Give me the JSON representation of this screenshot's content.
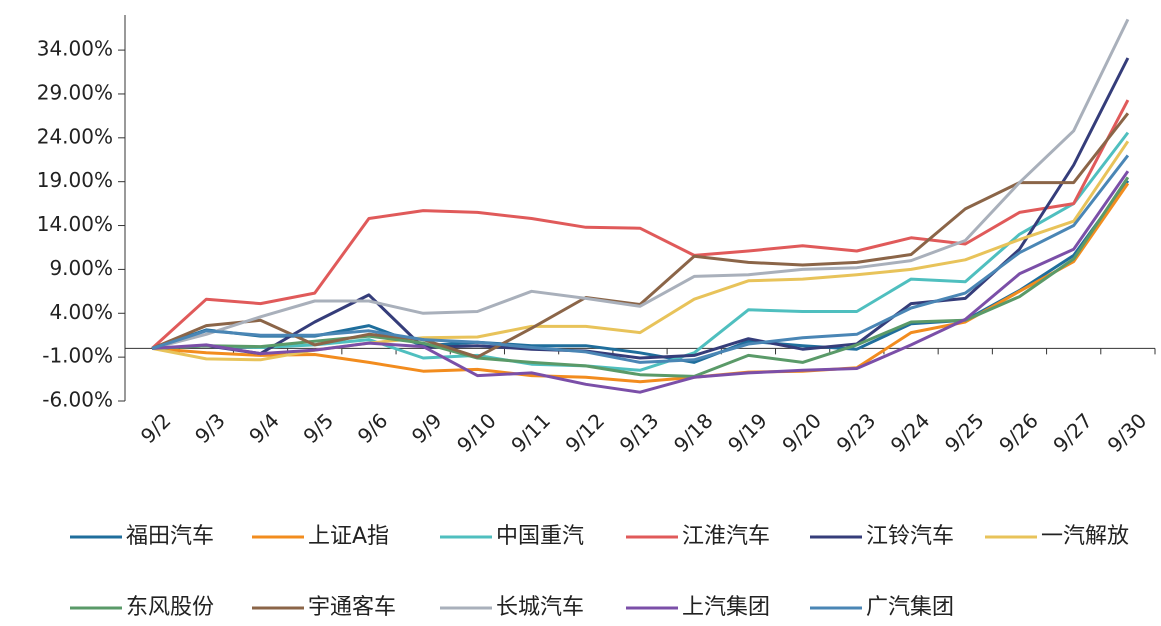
{
  "chart_data": {
    "type": "line",
    "categories": [
      "9/2",
      "9/3",
      "9/4",
      "9/5",
      "9/6",
      "9/9",
      "9/10",
      "9/11",
      "9/12",
      "9/13",
      "9/18",
      "9/19",
      "9/20",
      "9/23",
      "9/24",
      "9/25",
      "9/26",
      "9/27",
      "9/30"
    ],
    "ylim": [
      -6,
      38
    ],
    "yticks": [
      {
        "value": -6,
        "label": "-6.00%"
      },
      {
        "value": -1,
        "label": "-1.00%"
      },
      {
        "value": 4,
        "label": "4.00%"
      },
      {
        "value": 9,
        "label": "9.00%"
      },
      {
        "value": 14,
        "label": "14.00%"
      },
      {
        "value": 19,
        "label": "19.00%"
      },
      {
        "value": 24,
        "label": "24.00%"
      },
      {
        "value": 29,
        "label": "29.00%"
      },
      {
        "value": 34,
        "label": "34.00%"
      }
    ],
    "series": [
      {
        "name": "福田汽车",
        "color": "#1f6e9c",
        "values": [
          0,
          2.1,
          1.4,
          1.4,
          2.6,
          0.3,
          0.7,
          0.3,
          0.3,
          -0.5,
          -1.6,
          0.8,
          0.3,
          -0.1,
          2.8,
          3.2,
          6.6,
          10.6,
          19.1
        ]
      },
      {
        "name": "上证A指",
        "color": "#f28c1e",
        "values": [
          0,
          -0.5,
          -0.8,
          -0.7,
          -1.6,
          -2.6,
          -2.4,
          -3.1,
          -3.3,
          -3.8,
          -3.3,
          -2.7,
          -2.6,
          -2.2,
          1.8,
          3.0,
          6.5,
          9.9,
          18.8
        ]
      },
      {
        "name": "中国重汽",
        "color": "#4fbfbf",
        "values": [
          0,
          0.3,
          0.1,
          0.4,
          1.0,
          -1.1,
          -0.8,
          -1.8,
          -2.0,
          -2.5,
          -0.5,
          4.4,
          4.2,
          4.2,
          7.9,
          7.6,
          13.0,
          16.5,
          24.6
        ]
      },
      {
        "name": "江淮汽车",
        "color": "#e05a5a",
        "values": [
          0,
          5.6,
          5.1,
          6.3,
          14.8,
          15.7,
          15.5,
          14.8,
          13.8,
          13.7,
          10.6,
          11.1,
          11.7,
          11.1,
          12.6,
          11.9,
          15.5,
          16.5,
          28.3
        ]
      },
      {
        "name": "江铃汽车",
        "color": "#353d7a",
        "values": [
          0,
          0.3,
          -0.6,
          3.0,
          6.1,
          0.1,
          0.3,
          -0.1,
          -0.3,
          -1.1,
          -0.8,
          1.1,
          -0.1,
          0.5,
          5.1,
          5.7,
          11.3,
          20.9,
          33.1
        ]
      },
      {
        "name": "一汽解放",
        "color": "#e8c35a",
        "values": [
          0,
          -1.2,
          -1.3,
          -0.2,
          0.6,
          1.2,
          1.3,
          2.5,
          2.5,
          1.8,
          5.6,
          7.7,
          7.9,
          8.4,
          9.0,
          10.1,
          12.4,
          14.5,
          23.6
        ]
      },
      {
        "name": "东风股份",
        "color": "#5a9a68",
        "values": [
          0,
          0.3,
          0.2,
          0.8,
          1.4,
          0.6,
          -1.1,
          -1.6,
          -2.0,
          -3.0,
          -3.2,
          -0.8,
          -1.6,
          0.4,
          3.0,
          3.2,
          5.9,
          10.2,
          19.5
        ]
      },
      {
        "name": "宇通客车",
        "color": "#8b6548",
        "values": [
          0,
          2.6,
          3.2,
          0.4,
          1.6,
          1.0,
          -1.0,
          2.3,
          5.8,
          5.0,
          10.5,
          9.8,
          9.5,
          9.8,
          10.7,
          15.9,
          18.9,
          18.9,
          26.8
        ]
      },
      {
        "name": "长城汽车",
        "color": "#a9b0bb",
        "values": [
          0,
          1.6,
          3.6,
          5.4,
          5.4,
          4.0,
          4.2,
          6.5,
          5.7,
          4.8,
          8.2,
          8.4,
          9.0,
          9.2,
          10.0,
          12.3,
          18.9,
          24.8,
          37.5
        ]
      },
      {
        "name": "上汽集团",
        "color": "#7b4fa8",
        "values": [
          0,
          0.4,
          -0.6,
          -0.2,
          0.6,
          0.2,
          -3.1,
          -2.8,
          -4.1,
          -5.0,
          -3.3,
          -2.8,
          -2.5,
          -2.3,
          0.4,
          3.3,
          8.5,
          11.3,
          20.2
        ]
      },
      {
        "name": "广汽集团",
        "color": "#4a86b5",
        "values": [
          0,
          2.0,
          1.5,
          1.5,
          2.0,
          1.0,
          0.7,
          0.1,
          -0.4,
          -1.6,
          -1.3,
          0.5,
          1.2,
          1.6,
          4.6,
          6.3,
          10.9,
          14.0,
          22.0
        ]
      }
    ]
  }
}
